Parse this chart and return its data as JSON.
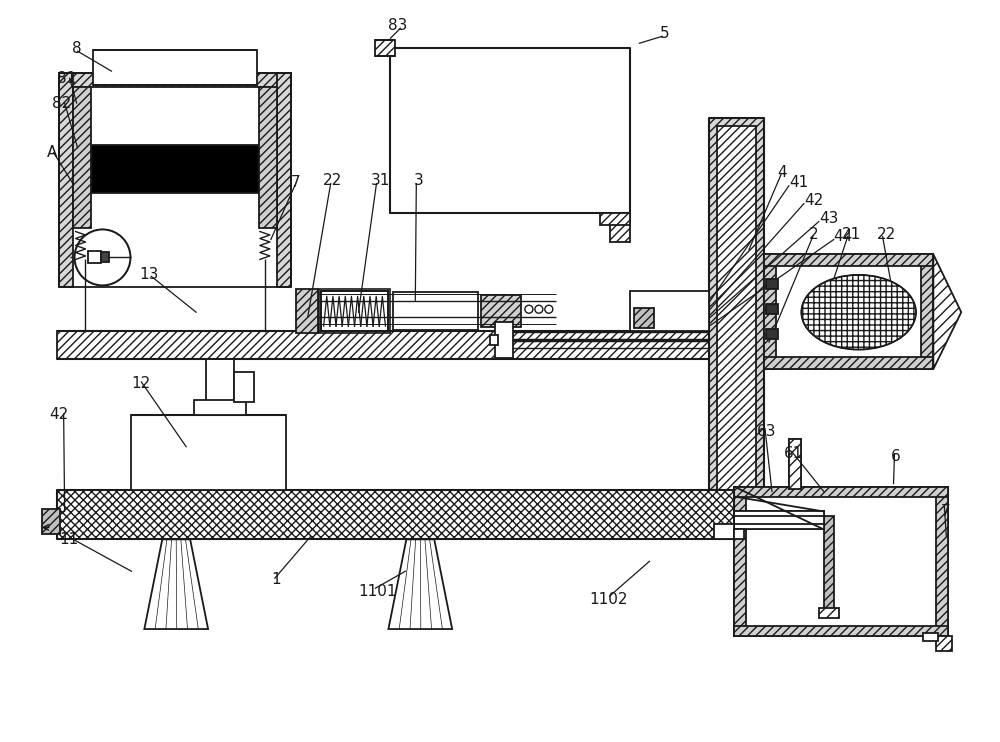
{
  "bg_color": "#ffffff",
  "line_color": "#1a1a1a",
  "figsize": [
    10.0,
    7.42
  ],
  "dpi": 100
}
